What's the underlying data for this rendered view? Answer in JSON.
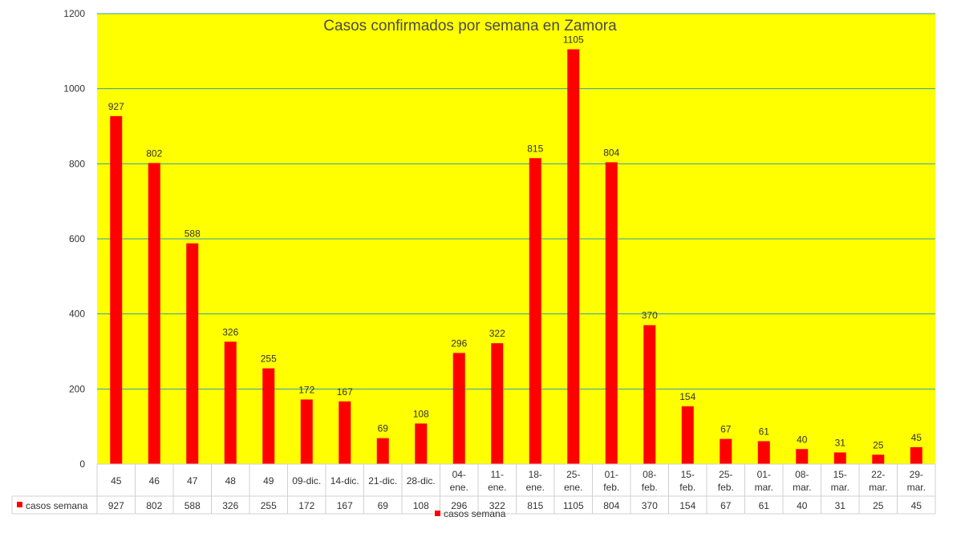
{
  "chart_data": {
    "type": "bar",
    "title": "Casos confirmados por  semana en Zamora",
    "categories": [
      [
        "45"
      ],
      [
        "46"
      ],
      [
        "47"
      ],
      [
        "48"
      ],
      [
        "49"
      ],
      [
        "09-dic."
      ],
      [
        "14-dic."
      ],
      [
        "21-dic."
      ],
      [
        "28-dic."
      ],
      [
        "04-",
        "ene."
      ],
      [
        "11-",
        "ene."
      ],
      [
        "18-",
        "ene."
      ],
      [
        "25-",
        "ene."
      ],
      [
        "01-",
        "feb."
      ],
      [
        "08-",
        "feb."
      ],
      [
        "15-",
        "feb."
      ],
      [
        "25-",
        "feb."
      ],
      [
        "01-",
        "mar."
      ],
      [
        "08-",
        "mar."
      ],
      [
        "15-",
        "mar."
      ],
      [
        "22-",
        "mar."
      ],
      [
        "29-",
        "mar."
      ]
    ],
    "series": [
      {
        "name": "casos semana",
        "values": [
          927,
          802,
          588,
          326,
          255,
          172,
          167,
          69,
          108,
          296,
          322,
          815,
          1105,
          804,
          370,
          154,
          67,
          61,
          40,
          31,
          25,
          45
        ]
      }
    ],
    "ylim": [
      0,
      1200
    ],
    "yticks": [
      0,
      200,
      400,
      600,
      800,
      1000,
      1200
    ],
    "grid": true,
    "legend": "bottom-center",
    "data_table": true,
    "colors": {
      "bar": "#ff0000",
      "plot_background": "#ffff00",
      "gridline": "#2e9fb0",
      "table_border": "#d0d0d0"
    }
  }
}
